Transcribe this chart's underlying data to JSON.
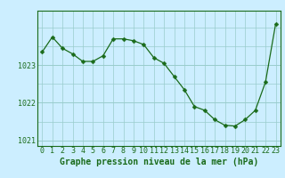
{
  "x": [
    0,
    1,
    2,
    3,
    4,
    5,
    6,
    7,
    8,
    9,
    10,
    11,
    12,
    13,
    14,
    15,
    16,
    17,
    18,
    19,
    20,
    21,
    22,
    23
  ],
  "y": [
    1023.35,
    1023.75,
    1023.45,
    1023.3,
    1023.1,
    1023.1,
    1023.25,
    1023.7,
    1023.7,
    1023.65,
    1023.55,
    1023.2,
    1023.05,
    1022.7,
    1022.35,
    1021.9,
    1021.8,
    1021.55,
    1021.4,
    1021.38,
    1021.55,
    1021.8,
    1022.55,
    1024.1
  ],
  "line_color": "#1a6b1a",
  "marker": "D",
  "marker_size": 2.5,
  "bg_color": "#cceeff",
  "grid_color": "#99cccc",
  "axis_color": "#1a6b1a",
  "xlabel": "Graphe pression niveau de la mer (hPa)",
  "xlabel_fontsize": 7,
  "tick_fontsize": 6,
  "ytick_vals": [
    1021,
    1022,
    1023
  ],
  "ytick_labels": [
    "1021",
    "1022",
    "1023"
  ],
  "ylim": [
    1020.85,
    1024.45
  ],
  "xlim": [
    -0.5,
    23.5
  ],
  "xticks": [
    0,
    1,
    2,
    3,
    4,
    5,
    6,
    7,
    8,
    9,
    10,
    11,
    12,
    13,
    14,
    15,
    16,
    17,
    18,
    19,
    20,
    21,
    22,
    23
  ]
}
